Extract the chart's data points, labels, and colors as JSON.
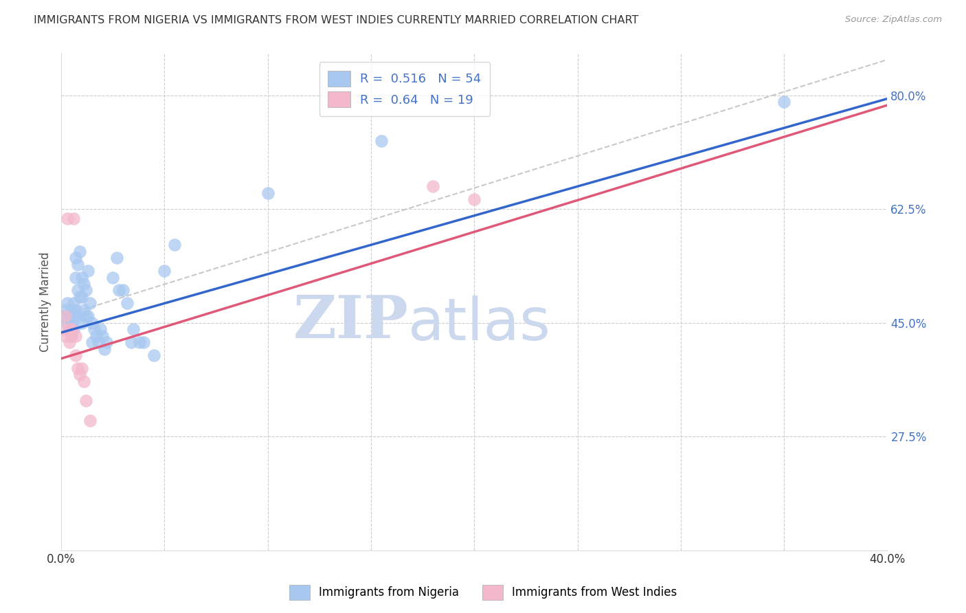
{
  "title": "IMMIGRANTS FROM NIGERIA VS IMMIGRANTS FROM WEST INDIES CURRENTLY MARRIED CORRELATION CHART",
  "source": "Source: ZipAtlas.com",
  "ylabel": "Currently Married",
  "y_ticks": [
    0.275,
    0.45,
    0.625,
    0.8
  ],
  "y_tick_labels": [
    "27.5%",
    "45.0%",
    "62.5%",
    "80.0%"
  ],
  "xlim": [
    0.0,
    0.4
  ],
  "ylim": [
    0.1,
    0.865
  ],
  "nigeria_R": 0.516,
  "nigeria_N": 54,
  "westindies_R": 0.64,
  "westindies_N": 19,
  "nigeria_color": "#a8c8f0",
  "westindies_color": "#f4b8cc",
  "nigeria_line_color": "#3366cc",
  "westindies_line_color": "#e05878",
  "ci_line_color": "#c8c8c8",
  "watermark_zip": "ZIP",
  "watermark_atlas": "atlas",
  "watermark_color": "#ccd8ee",
  "background_color": "#ffffff",
  "title_fontsize": 11.5,
  "axis_label_fontsize": 12,
  "tick_label_fontsize": 12,
  "legend_fontsize": 13,
  "nigeria_x": [
    0.001,
    0.002,
    0.003,
    0.003,
    0.004,
    0.004,
    0.005,
    0.005,
    0.005,
    0.006,
    0.006,
    0.006,
    0.007,
    0.007,
    0.007,
    0.008,
    0.008,
    0.008,
    0.009,
    0.009,
    0.01,
    0.01,
    0.01,
    0.011,
    0.011,
    0.012,
    0.012,
    0.013,
    0.013,
    0.014,
    0.015,
    0.015,
    0.016,
    0.017,
    0.018,
    0.019,
    0.02,
    0.021,
    0.022,
    0.025,
    0.027,
    0.028,
    0.03,
    0.032,
    0.034,
    0.035,
    0.038,
    0.04,
    0.045,
    0.05,
    0.055,
    0.1,
    0.155,
    0.35
  ],
  "nigeria_y": [
    0.46,
    0.47,
    0.48,
    0.45,
    0.46,
    0.44,
    0.47,
    0.45,
    0.43,
    0.48,
    0.46,
    0.44,
    0.55,
    0.52,
    0.47,
    0.54,
    0.5,
    0.46,
    0.56,
    0.49,
    0.52,
    0.49,
    0.45,
    0.51,
    0.47,
    0.5,
    0.46,
    0.53,
    0.46,
    0.48,
    0.45,
    0.42,
    0.44,
    0.43,
    0.42,
    0.44,
    0.43,
    0.41,
    0.42,
    0.52,
    0.55,
    0.5,
    0.5,
    0.48,
    0.42,
    0.44,
    0.42,
    0.42,
    0.4,
    0.53,
    0.57,
    0.65,
    0.73,
    0.79
  ],
  "westindies_x": [
    0.001,
    0.002,
    0.002,
    0.003,
    0.004,
    0.004,
    0.005,
    0.005,
    0.006,
    0.007,
    0.007,
    0.008,
    0.009,
    0.01,
    0.011,
    0.012,
    0.014,
    0.18,
    0.2
  ],
  "westindies_y": [
    0.44,
    0.43,
    0.46,
    0.61,
    0.44,
    0.42,
    0.44,
    0.43,
    0.61,
    0.43,
    0.4,
    0.38,
    0.37,
    0.38,
    0.36,
    0.33,
    0.3,
    0.66,
    0.64
  ],
  "nigeria_line_x0": 0.0,
  "nigeria_line_y0": 0.435,
  "nigeria_line_x1": 0.4,
  "nigeria_line_y1": 0.795,
  "westindies_line_x0": 0.0,
  "westindies_line_y0": 0.395,
  "westindies_line_x1": 0.4,
  "westindies_line_y1": 0.785,
  "ci_line_x0": 0.0,
  "ci_line_y0": 0.46,
  "ci_line_x1": 0.4,
  "ci_line_y1": 0.855
}
